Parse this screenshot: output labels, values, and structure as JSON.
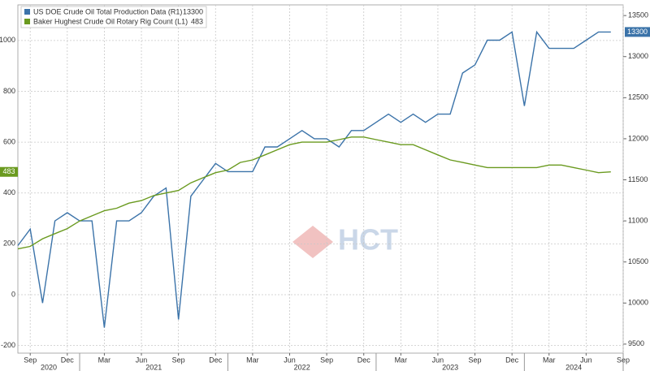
{
  "chart_data": {
    "type": "line",
    "watermark": "HCT",
    "x": [
      "2020-08",
      "2020-09",
      "2020-10",
      "2020-11",
      "2020-12",
      "2021-01",
      "2021-02",
      "2021-03",
      "2021-04",
      "2021-05",
      "2021-06",
      "2021-07",
      "2021-08",
      "2021-09",
      "2021-10",
      "2021-11",
      "2021-12",
      "2022-01",
      "2022-02",
      "2022-03",
      "2022-04",
      "2022-05",
      "2022-06",
      "2022-07",
      "2022-08",
      "2022-09",
      "2022-10",
      "2022-11",
      "2022-12",
      "2023-01",
      "2023-02",
      "2023-03",
      "2023-04",
      "2023-05",
      "2023-06",
      "2023-07",
      "2023-08",
      "2023-09",
      "2023-10",
      "2023-11",
      "2023-12",
      "2024-01",
      "2024-02",
      "2024-03",
      "2024-04",
      "2024-05",
      "2024-06",
      "2024-07",
      "2024-08"
    ],
    "xlim": [
      "2020-08",
      "2024-09"
    ],
    "xticks": [
      {
        "value": "2020-09",
        "label": "Sep"
      },
      {
        "value": "2020-12",
        "label": "Dec"
      },
      {
        "value": "2021-03",
        "label": "Mar"
      },
      {
        "value": "2021-06",
        "label": "Jun"
      },
      {
        "value": "2021-09",
        "label": "Sep"
      },
      {
        "value": "2021-12",
        "label": "Dec"
      },
      {
        "value": "2022-03",
        "label": "Mar"
      },
      {
        "value": "2022-06",
        "label": "Jun"
      },
      {
        "value": "2022-09",
        "label": "Sep"
      },
      {
        "value": "2022-12",
        "label": "Dec"
      },
      {
        "value": "2023-03",
        "label": "Mar"
      },
      {
        "value": "2023-06",
        "label": "Jun"
      },
      {
        "value": "2023-09",
        "label": "Sep"
      },
      {
        "value": "2023-12",
        "label": "Dec"
      },
      {
        "value": "2024-03",
        "label": "Mar"
      },
      {
        "value": "2024-06",
        "label": "Jun"
      },
      {
        "value": "2024-09",
        "label": "Sep"
      }
    ],
    "year_labels": [
      "2020",
      "2021",
      "2022",
      "2023",
      "2024"
    ],
    "ylim": [
      -230,
      1140
    ],
    "yticks": [
      -200,
      0,
      200,
      400,
      600,
      800,
      1000
    ],
    "y2lim": [
      9390,
      13630
    ],
    "y2ticks": [
      9500,
      10000,
      10500,
      11000,
      11500,
      12000,
      12500,
      13000,
      13500
    ],
    "grid": true,
    "legend": "top-left",
    "series": [
      {
        "name": "US DOE Crude Oil Total Production Data (R1)",
        "color": "#3b73a9",
        "axis": "y2",
        "values": [
          10700,
          10900,
          10000,
          11000,
          11100,
          11000,
          11000,
          9700,
          11000,
          11000,
          11100,
          11300,
          11400,
          9800,
          11300,
          11500,
          11700,
          11600,
          11600,
          11600,
          11900,
          11900,
          12000,
          12100,
          12000,
          12000,
          11900,
          12100,
          12100,
          12200,
          12300,
          12200,
          12300,
          12200,
          12300,
          12300,
          12800,
          12900,
          13200,
          13200,
          13300,
          12400,
          13300,
          13100,
          13100,
          13100,
          13200,
          13300,
          13300
        ]
      },
      {
        "name": "Baker Hughest Crude Oil Rotary Rig Count (L1)",
        "color": "#6a9a1f",
        "axis": "y",
        "values": [
          180,
          190,
          220,
          240,
          260,
          290,
          310,
          330,
          340,
          360,
          370,
          390,
          400,
          410,
          440,
          460,
          480,
          490,
          520,
          530,
          550,
          570,
          590,
          600,
          600,
          600,
          610,
          620,
          620,
          610,
          600,
          590,
          590,
          570,
          550,
          530,
          520,
          510,
          500,
          500,
          500,
          500,
          500,
          510,
          510,
          500,
          490,
          480,
          483
        ]
      }
    ]
  }
}
